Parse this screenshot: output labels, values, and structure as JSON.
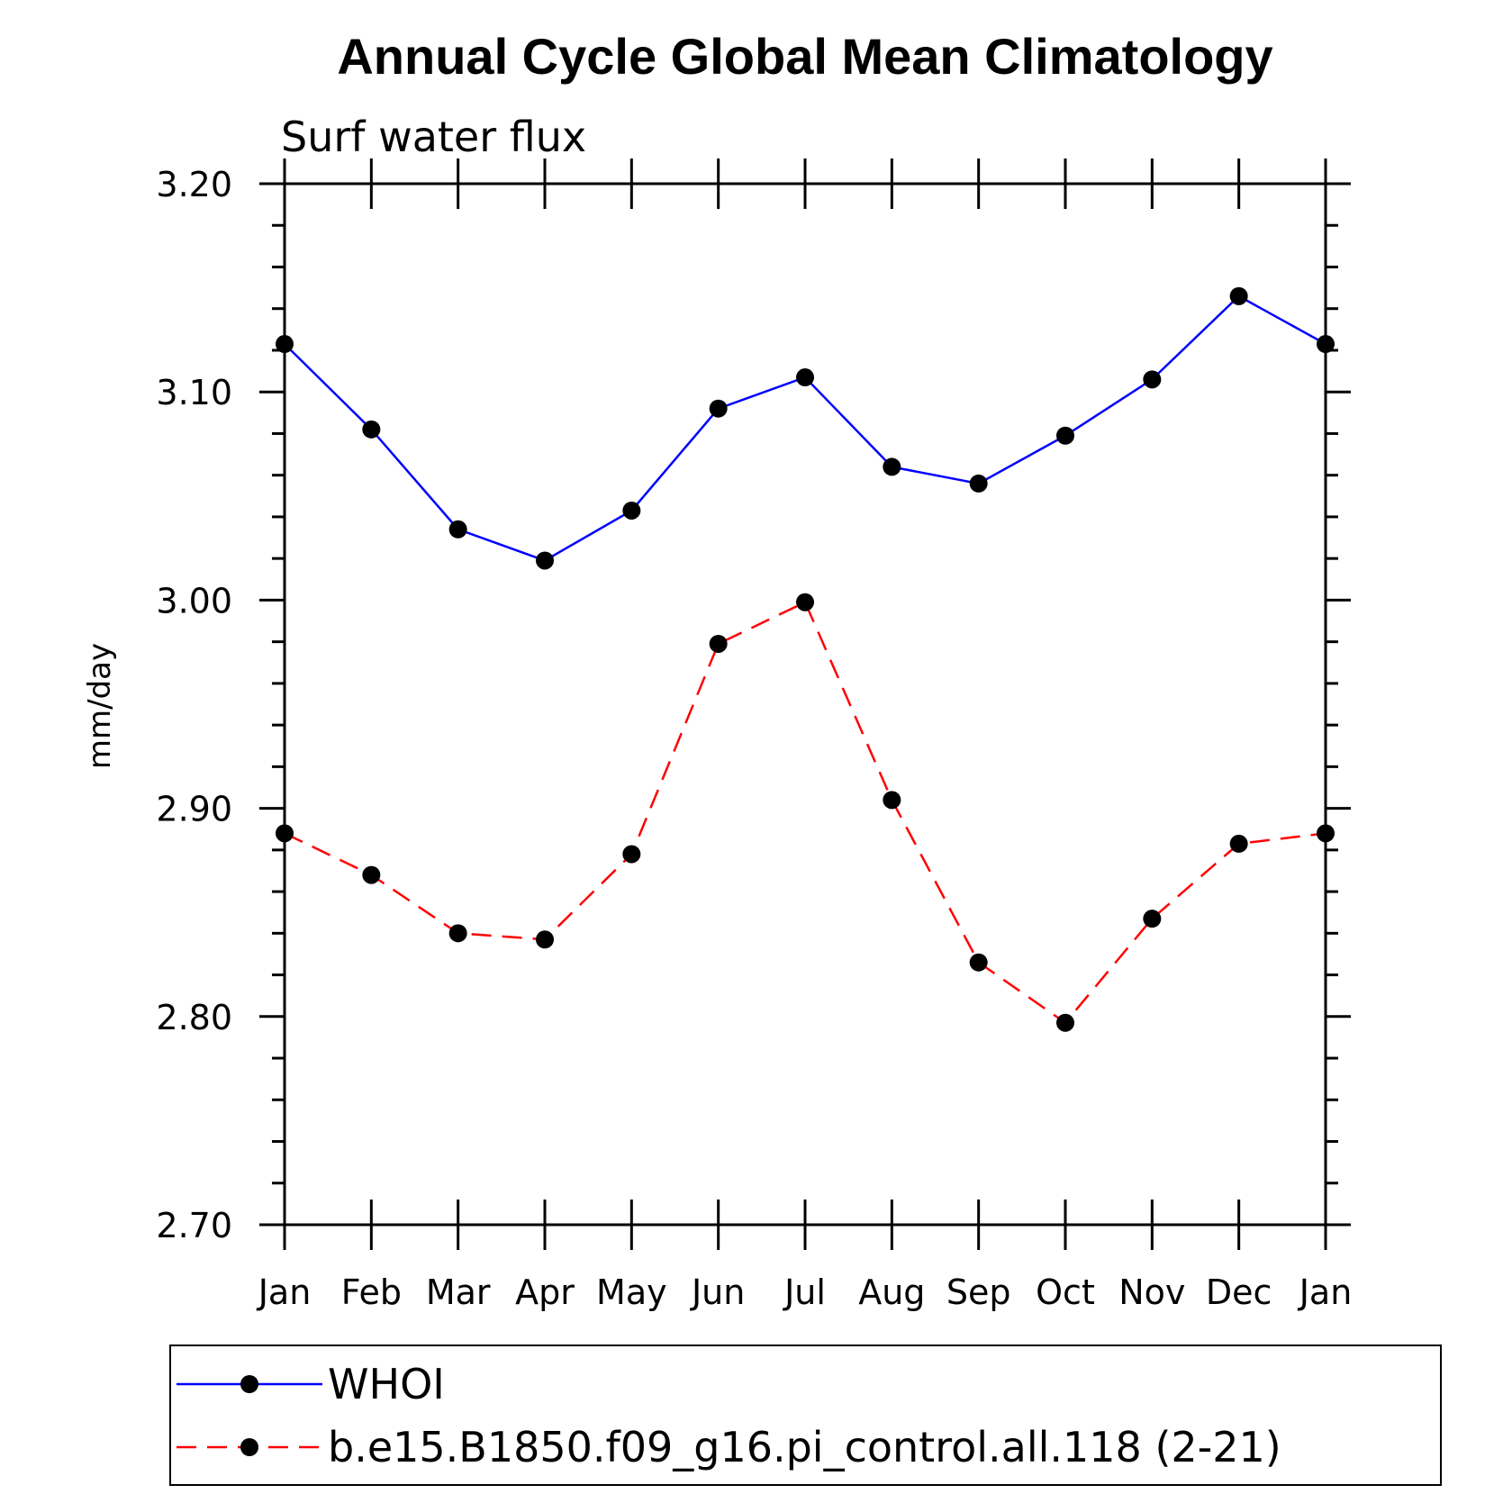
{
  "chart_data": {
    "type": "line",
    "title": "Annual Cycle Global Mean Climatology",
    "subtitle": "Surf water flux",
    "ylabel": "mm/day",
    "xlabel": "",
    "categories": [
      "Jan",
      "Feb",
      "Mar",
      "Apr",
      "May",
      "Jun",
      "Jul",
      "Aug",
      "Sep",
      "Oct",
      "Nov",
      "Dec",
      "Jan"
    ],
    "ylim": [
      2.7,
      3.2
    ],
    "yticks": [
      "3.20",
      "3.10",
      "3.00",
      "2.90",
      "2.80",
      "2.70"
    ],
    "ytick_values": [
      3.2,
      3.1,
      3.0,
      2.9,
      2.8,
      2.7
    ],
    "grid": false,
    "legend_position": "bottom",
    "series": [
      {
        "name": "WHOI",
        "color": "#0000ff",
        "dash": "solid",
        "marker": "filled-circle",
        "values": [
          3.123,
          3.082,
          3.034,
          3.019,
          3.043,
          3.092,
          3.107,
          3.064,
          3.056,
          3.079,
          3.106,
          3.146,
          3.123
        ]
      },
      {
        "name": "b.e15.B1850.f09_g16.pi_control.all.118 (2-21)",
        "color": "#ff0000",
        "dash": "dashed",
        "marker": "filled-circle",
        "values": [
          2.888,
          2.868,
          2.84,
          2.837,
          2.878,
          2.979,
          2.999,
          2.904,
          2.826,
          2.797,
          2.847,
          2.883,
          2.888
        ]
      }
    ]
  }
}
